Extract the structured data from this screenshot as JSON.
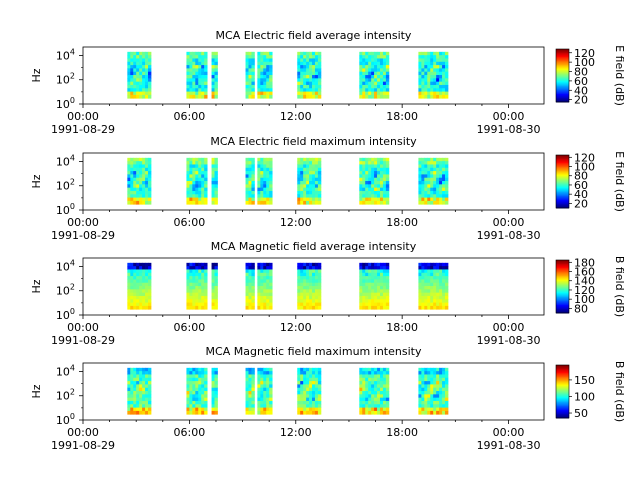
{
  "chart_data": [
    {
      "type": "heatmap",
      "title": "MCA  Electric field average intensity",
      "ylabel": "Hz",
      "ylog": true,
      "ylim": [
        1,
        50000
      ],
      "y_ticks": [
        "10",
        "10",
        "10"
      ],
      "y_tick_exps": [
        "0",
        "2",
        "4"
      ],
      "x_ticks": [
        "00:00",
        "06:00",
        "12:00",
        "18:00",
        "00:00"
      ],
      "x_dates": [
        "1991-08-29",
        "1991-08-30"
      ],
      "colorbar": {
        "label": "E field (dB)",
        "range": [
          15,
          128
        ],
        "ticks": [
          "20",
          "40",
          "60",
          "80",
          "100",
          "120"
        ],
        "tick_values": [
          20,
          40,
          60,
          80,
          100,
          120
        ]
      },
      "bg_level": 0.4,
      "top_level": 0.45,
      "seed": 11,
      "segments": [
        {
          "start": "02:30",
          "end": "03:50"
        },
        {
          "start": "05:50",
          "end": "07:00"
        },
        {
          "start": "07:15",
          "end": "07:35"
        },
        {
          "start": "09:10",
          "end": "09:40"
        },
        {
          "start": "09:50",
          "end": "10:40"
        },
        {
          "start": "12:05",
          "end": "13:25"
        },
        {
          "start": "15:35",
          "end": "17:15"
        },
        {
          "start": "18:55",
          "end": "20:35"
        }
      ]
    },
    {
      "type": "heatmap",
      "title": "MCA  Electric field maximum intensity",
      "ylabel": "Hz",
      "ylog": true,
      "ylim": [
        1,
        50000
      ],
      "y_ticks": [
        "10",
        "10",
        "10"
      ],
      "y_tick_exps": [
        "0",
        "2",
        "4"
      ],
      "x_ticks": [
        "00:00",
        "06:00",
        "12:00",
        "18:00",
        "00:00"
      ],
      "x_dates": [
        "1991-08-29",
        "1991-08-30"
      ],
      "colorbar": {
        "label": "E field (dB)",
        "range": [
          10,
          125
        ],
        "ticks": [
          "20",
          "40",
          "60",
          "80",
          "100",
          "120"
        ],
        "tick_values": [
          20,
          40,
          60,
          80,
          100,
          120
        ]
      },
      "bg_level": 0.42,
      "top_level": 0.5,
      "seed": 23,
      "segments": [
        {
          "start": "02:30",
          "end": "03:50"
        },
        {
          "start": "05:50",
          "end": "07:00"
        },
        {
          "start": "07:15",
          "end": "07:35"
        },
        {
          "start": "09:10",
          "end": "09:40"
        },
        {
          "start": "09:50",
          "end": "10:40"
        },
        {
          "start": "12:05",
          "end": "13:25"
        },
        {
          "start": "15:35",
          "end": "17:15"
        },
        {
          "start": "18:55",
          "end": "20:35"
        }
      ]
    },
    {
      "type": "heatmap",
      "title": "MCA  Magnetic field average intensity",
      "ylabel": "Hz",
      "ylog": true,
      "ylim": [
        1,
        50000
      ],
      "y_ticks": [
        "10",
        "10",
        "10"
      ],
      "y_tick_exps": [
        "0",
        "2",
        "4"
      ],
      "x_ticks": [
        "00:00",
        "06:00",
        "12:00",
        "18:00",
        "00:00"
      ],
      "x_dates": [
        "1991-08-29",
        "1991-08-30"
      ],
      "colorbar": {
        "label": "B field (dB)",
        "range": [
          70,
          185
        ],
        "ticks": [
          "80",
          "100",
          "120",
          "140",
          "160",
          "180"
        ],
        "tick_values": [
          80,
          100,
          120,
          140,
          160,
          180
        ]
      },
      "bg_level": 0.42,
      "top_level": 0.08,
      "seed": 37,
      "segments": [
        {
          "start": "02:30",
          "end": "03:50"
        },
        {
          "start": "05:50",
          "end": "07:00"
        },
        {
          "start": "07:15",
          "end": "07:35"
        },
        {
          "start": "09:10",
          "end": "09:40"
        },
        {
          "start": "09:50",
          "end": "10:40"
        },
        {
          "start": "12:05",
          "end": "13:25"
        },
        {
          "start": "15:35",
          "end": "17:15"
        },
        {
          "start": "18:55",
          "end": "20:35"
        }
      ]
    },
    {
      "type": "heatmap",
      "title": "MCA  Magnetic field maximum intensity",
      "ylabel": "Hz",
      "ylog": true,
      "ylim": [
        1,
        50000
      ],
      "y_ticks": [
        "10",
        "10",
        "10"
      ],
      "y_tick_exps": [
        "0",
        "2",
        "4"
      ],
      "x_ticks": [
        "00:00",
        "06:00",
        "12:00",
        "18:00",
        "00:00"
      ],
      "x_dates": [
        "1991-08-29",
        "1991-08-30"
      ],
      "colorbar": {
        "label": "B field (dB)",
        "range": [
          35,
          195
        ],
        "ticks": [
          "50",
          "100",
          "150"
        ],
        "tick_values": [
          50,
          100,
          150
        ]
      },
      "bg_level": 0.45,
      "top_level": 0.35,
      "seed": 51,
      "segments": [
        {
          "start": "02:30",
          "end": "03:50"
        },
        {
          "start": "05:50",
          "end": "07:00"
        },
        {
          "start": "07:15",
          "end": "07:35"
        },
        {
          "start": "09:10",
          "end": "09:40"
        },
        {
          "start": "09:50",
          "end": "10:40"
        },
        {
          "start": "12:05",
          "end": "13:25"
        },
        {
          "start": "15:35",
          "end": "17:15"
        },
        {
          "start": "18:55",
          "end": "20:35"
        }
      ]
    }
  ]
}
